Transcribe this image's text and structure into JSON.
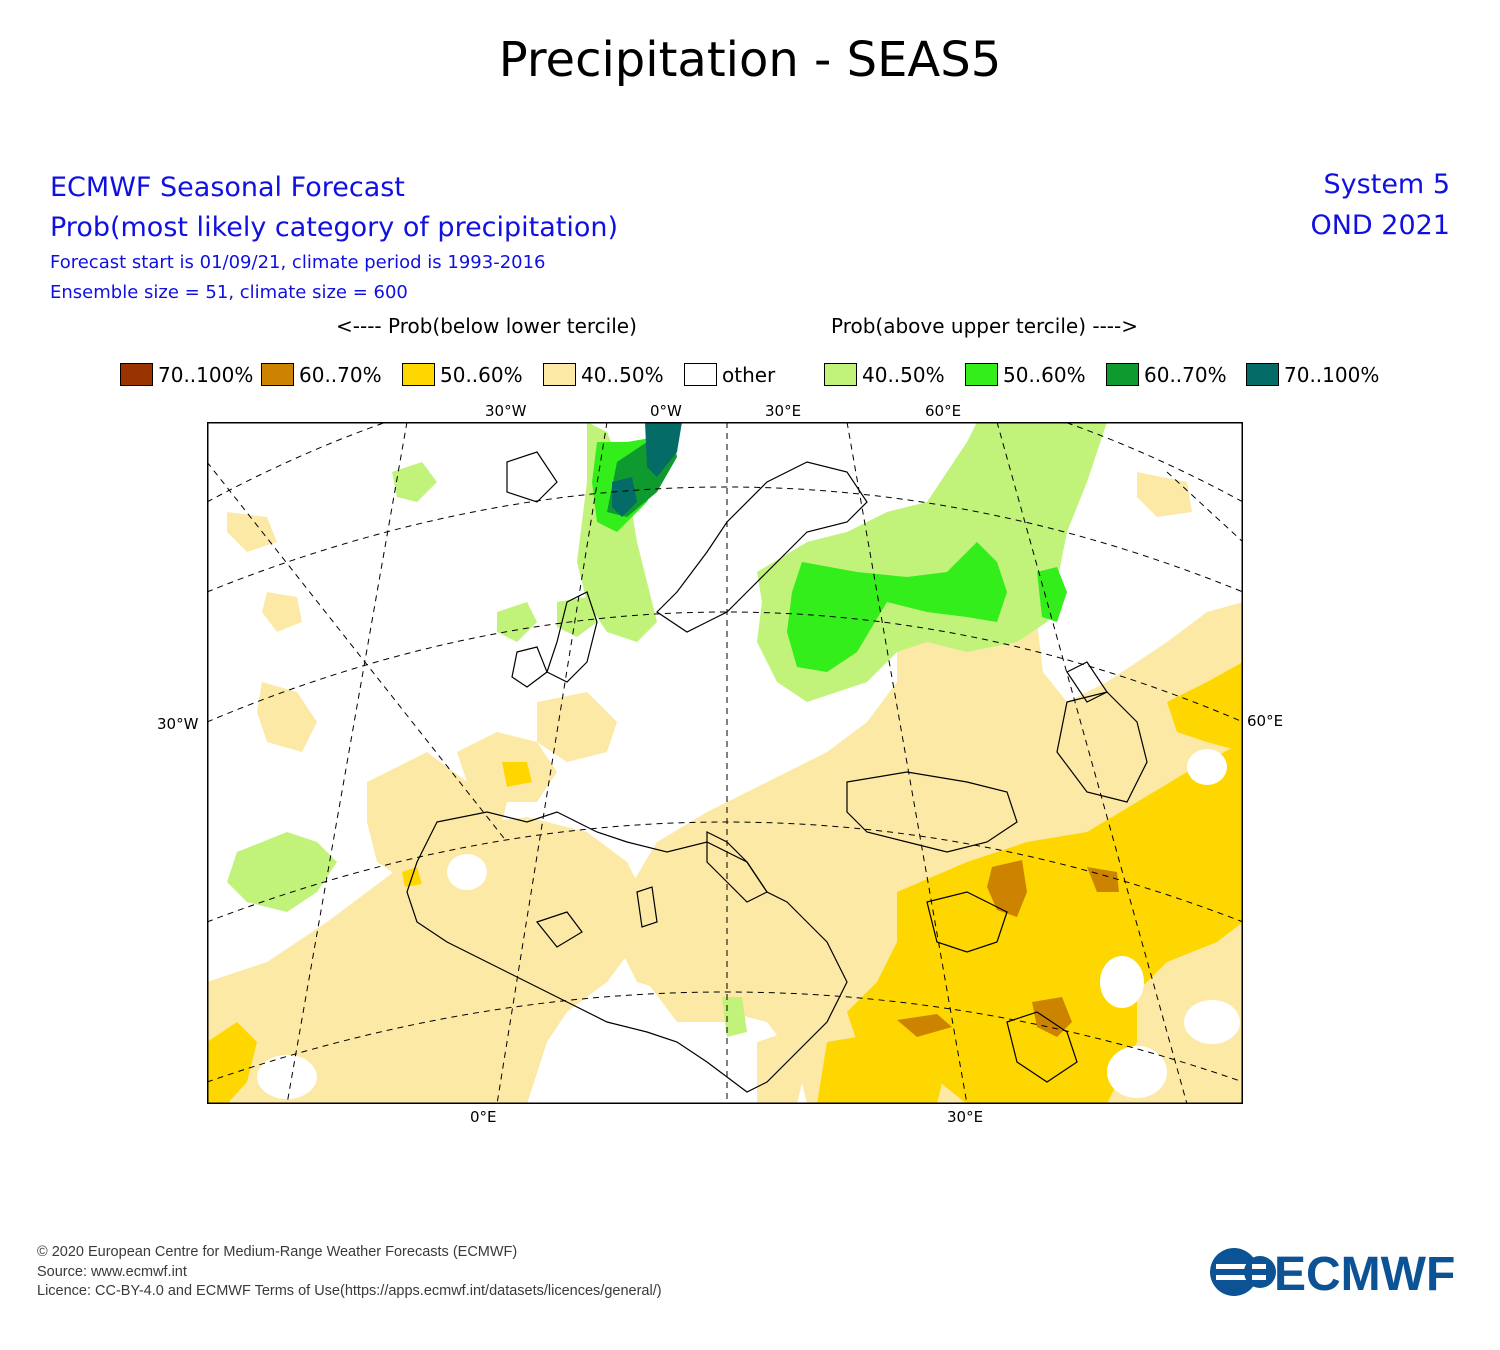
{
  "title": "Precipitation - SEAS5",
  "header_left": {
    "line1": "ECMWF Seasonal Forecast",
    "line2": "Prob(most likely category of precipitation)",
    "line3": "Forecast start is 01/09/21, climate period is 1993-2016",
    "line4": "Ensemble size = 51, climate size = 600"
  },
  "header_right": {
    "system": "System 5",
    "period": "OND 2021"
  },
  "legend_titles": {
    "below": "<---- Prob(below lower tercile)",
    "above": "Prob(above upper tercile) ---->"
  },
  "legend": [
    {
      "label": "70..100%",
      "color": "#993300"
    },
    {
      "label": "60..70%",
      "color": "#cc8400"
    },
    {
      "label": "50..60%",
      "color": "#ffd700"
    },
    {
      "label": "40..50%",
      "color": "#fde9a6"
    },
    {
      "label": "other",
      "color": "#ffffff"
    },
    {
      "label": "40..50%",
      "color": "#c1f27a"
    },
    {
      "label": "50..60%",
      "color": "#33ee1a"
    },
    {
      "label": "60..70%",
      "color": "#0f9a30"
    },
    {
      "label": "70..100%",
      "color": "#046b66"
    }
  ],
  "axis_labels": {
    "top": [
      "30°W",
      "0°W",
      "30°E",
      "60°E"
    ],
    "bottom": [
      "0°E",
      "30°E"
    ],
    "left": "30°W",
    "right": "60°E"
  },
  "footer": {
    "copyright": "© 2020 European Centre for Medium-Range Weather Forecasts (ECMWF)",
    "source": "Source: www.ecmwf.int",
    "licence": "Licence: CC-BY-4.0 and ECMWF Terms of Use(https://apps.ecmwf.int/datasets/licences/general/)"
  },
  "logo_text": "ECMWF",
  "colors": {
    "text_blue": "#1010e0",
    "logo_blue": "#0b5394"
  }
}
